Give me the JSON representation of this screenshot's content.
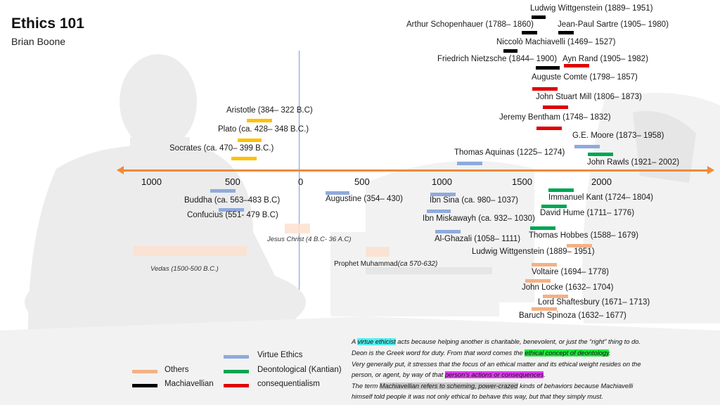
{
  "header": {
    "title": "Ethics 101",
    "subtitle": "Brian Boone"
  },
  "axis": {
    "ticks": [
      "1000",
      "500",
      "0",
      "500",
      "1000",
      "1500",
      "2000"
    ]
  },
  "colors": {
    "virtue": "#8faadc",
    "deontological": "#00a651",
    "machiavellian": "#000000",
    "consequentialism": "#e00000",
    "others": "#f4b183",
    "ancient": "#ffc000",
    "axis": "#f08a3c"
  },
  "people": {
    "aristotle": "Aristotle (384– 322 B.C)",
    "plato": "Plato (ca. 428– 348 B.C.)",
    "socrates": "Socrates (ca. 470– 399 B.C.)",
    "buddha": "Buddha (ca. 563–483 B.C)",
    "confucius": "Confucius (551- 479 B.C)",
    "jesus": "Jesus Christ (4 B.C- 36 A.C)",
    "vedas": "Vedas (1500-500 B.C.)",
    "augustine": "Augustine (354– 430)",
    "muhammad": "Prophet Muhammad",
    "muhammad_dates": "(ca 570-632)",
    "ibn_sina": "Ibn Sina (ca. 980– 1037)",
    "ibn_miskawayh": "Ibn Miskawayh (ca. 932– 1030)",
    "al_ghazali": "Al-Ghazali (1058– 1111)",
    "aquinas": "Thomas Aquinas (1225– 1274)",
    "wittgenstein_top": "Ludwig Wittgenstein (1889– 1951)",
    "schopenhauer": "Arthur Schopenhauer (1788– 1860)",
    "sartre": "Jean-Paul Sartre (1905– 1980)",
    "machiavelli": "Niccolò Machiavelli (1469– 1527)",
    "nietzsche": "Friedrich Nietzsche (1844– 1900)",
    "rand": "Ayn Rand (1905– 1982)",
    "comte": "Auguste Comte (1798– 1857)",
    "mill": "John Stuart Mill (1806– 1873)",
    "bentham": "Jeremy Bentham (1748– 1832)",
    "moore": "G.E. Moore (1873– 1958)",
    "rawls": "John Rawls (1921– 2002)",
    "kant": "Immanuel Kant (1724– 1804)",
    "hume": "David Hume (1711– 1776)",
    "hobbes": "Thomas Hobbes (1588– 1679)",
    "wittgenstein_low": "Ludwig Wittgenstein (1889– 1951)",
    "voltaire": "Voltaire (1694– 1778)",
    "locke": "John Locke (1632– 1704)",
    "shaftesbury": "Lord Shaftesbury (1671– 1713)",
    "spinoza": "Baruch Spinoza (1632– 1677)"
  },
  "legend": {
    "virtue": "Virtue Ethics",
    "others": "Others",
    "deontological": "Deontological (Kantian)",
    "machiavellian": "Machiavellian",
    "consequentialism": "consequentialism"
  },
  "notes": {
    "n1_a": "A ",
    "n1_hl": "virtue ethicist",
    "n1_b": " acts because helping another is charitable, benevolent, or just the “right” thing to do.",
    "n2_a": "Deon is the Greek word for duty. From that word comes the ",
    "n2_hl": "ethical concept of deontology",
    "n2_b": ".",
    "n3": "Very generally put, it stresses that the focus of an ethical matter and its ethical weight resides on the",
    "n4_a": "person, or agent, by way of that ",
    "n4_hl": "person’s actions or consequences",
    "n4_b": ".",
    "n5_a": "The term ",
    "n5_hl": "Machiavellian refers to scheming, power-crazed",
    "n5_b": " kinds of behaviors because Machiavelli",
    "n6": "himself told people it was not only ethical to behave this way, but that they simply must."
  }
}
